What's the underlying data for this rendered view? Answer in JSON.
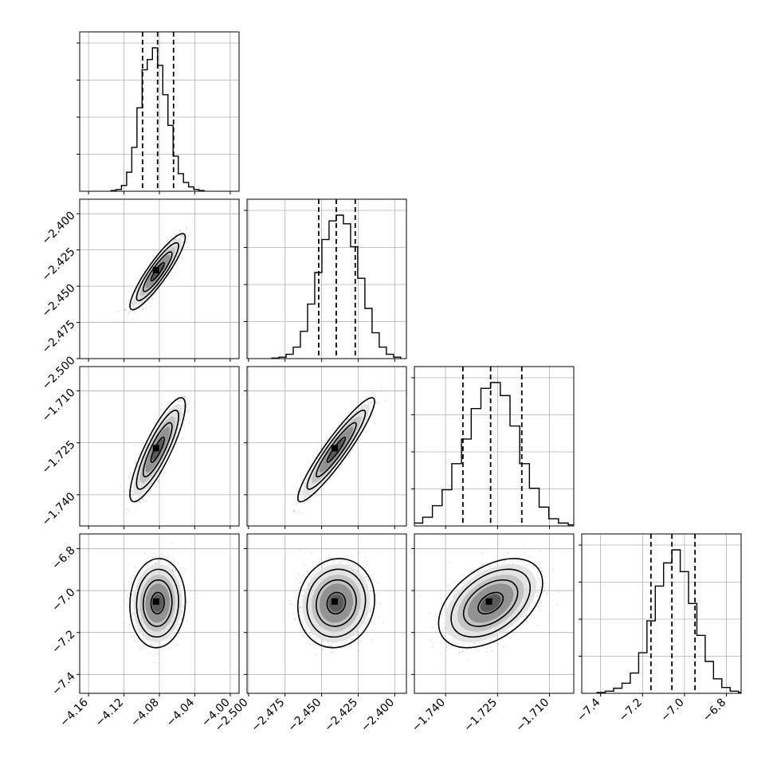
{
  "chart_data": {
    "type": "corner",
    "title": "",
    "parameters": [
      {
        "index": 0,
        "label": "",
        "range": [
          -4.17,
          -3.99
        ],
        "ticks": [
          "-4.16",
          "-4.12",
          "-4.08",
          "-4.04",
          "-4.00"
        ],
        "tick_values": [
          -4.16,
          -4.12,
          -4.08,
          -4.04,
          -4.0
        ],
        "q16": -4.099,
        "q50": -4.082,
        "q84": -4.064
      },
      {
        "index": 1,
        "label": "",
        "range": [
          -2.501,
          -2.392
        ],
        "ticks": [
          "-2.500",
          "-2.475",
          "-2.450",
          "-2.425",
          "-2.400"
        ],
        "tick_values": [
          -2.5,
          -2.475,
          -2.45,
          -2.425,
          -2.4
        ],
        "q16": -2.452,
        "q50": -2.44,
        "q84": -2.427
      },
      {
        "index": 2,
        "label": "",
        "range": [
          -1.749,
          -1.703
        ],
        "ticks": [
          "-1.740",
          "-1.725",
          "-1.710"
        ],
        "tick_values": [
          -1.74,
          -1.725,
          -1.71
        ],
        "q16": -1.735,
        "q50": -1.727,
        "q84": -1.718
      },
      {
        "index": 3,
        "label": "",
        "range": [
          -7.49,
          -6.73
        ],
        "ticks": [
          "-7.4",
          "-7.2",
          "-7.0",
          "-6.8"
        ],
        "tick_values": [
          -7.4,
          -7.2,
          -7.0,
          -6.8
        ],
        "q16": -7.16,
        "q50": -7.06,
        "q84": -6.95
      }
    ],
    "row_axis_ranges": {
      "1": [
        -2.5,
        -2.39
      ],
      "2": [
        -1.749,
        -1.703
      ],
      "3": [
        -7.49,
        -6.73
      ]
    },
    "means": [
      -4.082,
      -2.44,
      -1.727,
      -7.06
    ],
    "sigmas": [
      0.0125,
      0.0105,
      0.006,
      0.085
    ],
    "correlations": [
      [
        1.0,
        0.9,
        0.85,
        0.05
      ],
      [
        0.9,
        1.0,
        0.93,
        0.08
      ],
      [
        0.85,
        0.93,
        1.0,
        0.45
      ],
      [
        0.05,
        0.08,
        0.45,
        1.0
      ]
    ],
    "histograms": [
      {
        "param": 0,
        "counts": [
          0.5,
          1.2,
          4,
          13,
          30,
          57,
          83,
          90,
          98,
          86,
          66,
          45,
          24,
          12,
          6,
          3,
          1.2,
          0.5
        ]
      },
      {
        "param": 1,
        "counts": [
          0.4,
          1,
          3,
          8,
          19,
          38,
          60,
          83,
          96,
          100,
          94,
          78,
          56,
          35,
          18,
          8,
          3,
          1
        ]
      },
      {
        "param": 2,
        "counts": [
          0.8,
          2,
          6,
          14,
          25,
          43,
          60,
          81,
          95,
          99,
          90,
          69,
          43,
          26,
          13,
          5,
          2,
          0.8
        ]
      },
      {
        "param": 3,
        "counts": [
          0.6,
          1.5,
          3.5,
          7,
          14,
          28,
          50,
          74,
          90,
          99,
          84,
          62,
          40,
          22,
          10,
          4,
          1.5,
          0.6
        ]
      }
    ],
    "quantile_lines": "dashed",
    "contour_levels": 4,
    "grid": true,
    "colors": {
      "line": "#000000",
      "grid": "#b0b0b0",
      "scatter": "#999999"
    }
  }
}
